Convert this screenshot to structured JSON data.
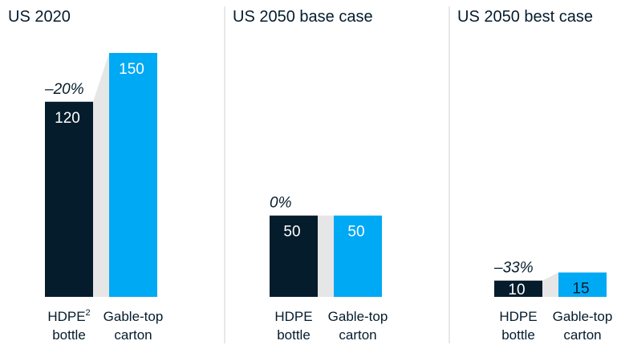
{
  "chart_data": [
    {
      "type": "bar",
      "title": "US 2020",
      "categories": [
        {
          "line1": "HDPE",
          "sup": "2",
          "line2": "bottle"
        },
        {
          "line1": "Gable-top",
          "sup": "",
          "line2": "carton"
        }
      ],
      "values": [
        120,
        150
      ],
      "labels": [
        "120",
        "150"
      ],
      "difference": "–20%",
      "ylim": [
        0,
        150
      ]
    },
    {
      "type": "bar",
      "title": "US 2050 base case",
      "categories": [
        {
          "line1": "HDPE",
          "sup": "",
          "line2": "bottle"
        },
        {
          "line1": "Gable-top",
          "sup": "",
          "line2": "carton"
        }
      ],
      "values": [
        50,
        50
      ],
      "labels": [
        "50",
        "50"
      ],
      "difference": "0%",
      "ylim": [
        0,
        150
      ]
    },
    {
      "type": "bar",
      "title": "US 2050 best case",
      "categories": [
        {
          "line1": "HDPE",
          "sup": "",
          "line2": "bottle"
        },
        {
          "line1": "Gable-top",
          "sup": "",
          "line2": "carton"
        }
      ],
      "values": [
        10,
        15
      ],
      "labels": [
        "10",
        "15"
      ],
      "difference": "–33%",
      "ylim": [
        0,
        150
      ]
    }
  ],
  "colors": {
    "series_dark": "#051c2c",
    "series_blue": "#00a9f4",
    "connector": "#e6e6e6",
    "divider": "#d0d0d0"
  }
}
